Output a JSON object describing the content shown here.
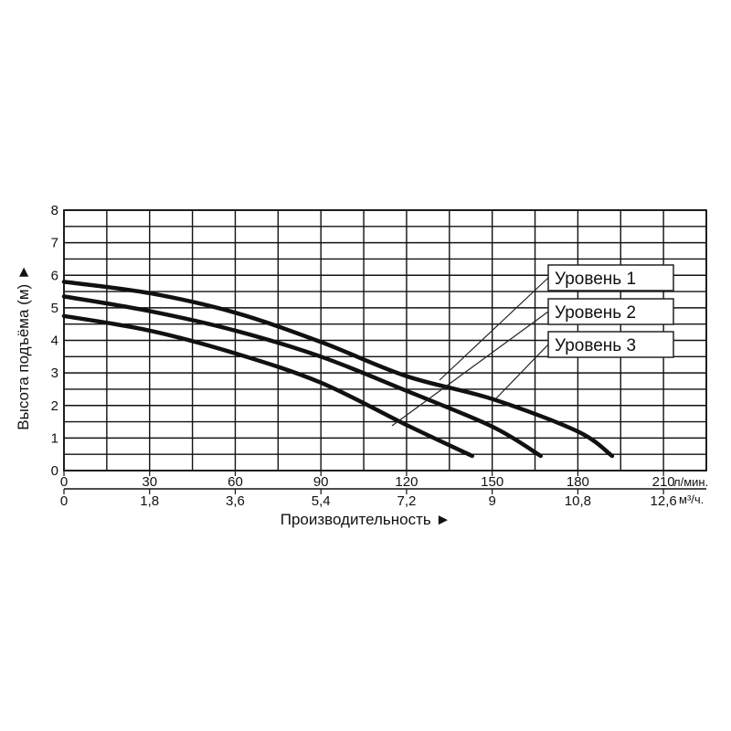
{
  "chart_data": {
    "type": "line",
    "xlabel": "Производительность ►",
    "ylabel": "Высота подъёма (м) ►",
    "x_unit_primary": "л/мин.",
    "x_unit_secondary": "м³/ч.",
    "xlim": [
      0,
      225
    ],
    "ylim": [
      0,
      8
    ],
    "x_ticks_primary": [
      "0",
      "30",
      "60",
      "90",
      "120",
      "150",
      "180",
      "210"
    ],
    "x_ticks_secondary": [
      "0",
      "1,8",
      "3,6",
      "5,4",
      "7,2",
      "9",
      "10,8",
      "12,6"
    ],
    "y_ticks": [
      "0",
      "1",
      "2",
      "3",
      "4",
      "5",
      "6",
      "7",
      "8"
    ],
    "grid": true,
    "series": [
      {
        "name": "Уровень 1",
        "points": [
          [
            0,
            5.8
          ],
          [
            30,
            5.45
          ],
          [
            60,
            4.85
          ],
          [
            90,
            3.95
          ],
          [
            120,
            2.9
          ],
          [
            150,
            2.2
          ],
          [
            180,
            1.2
          ],
          [
            192,
            0.45
          ]
        ]
      },
      {
        "name": "Уровень 2",
        "points": [
          [
            0,
            5.35
          ],
          [
            30,
            4.9
          ],
          [
            60,
            4.3
          ],
          [
            90,
            3.5
          ],
          [
            120,
            2.45
          ],
          [
            150,
            1.35
          ],
          [
            167,
            0.45
          ]
        ]
      },
      {
        "name": "Уровень 3",
        "points": [
          [
            0,
            4.75
          ],
          [
            30,
            4.3
          ],
          [
            60,
            3.6
          ],
          [
            90,
            2.7
          ],
          [
            120,
            1.4
          ],
          [
            143,
            0.45
          ]
        ]
      }
    ]
  }
}
